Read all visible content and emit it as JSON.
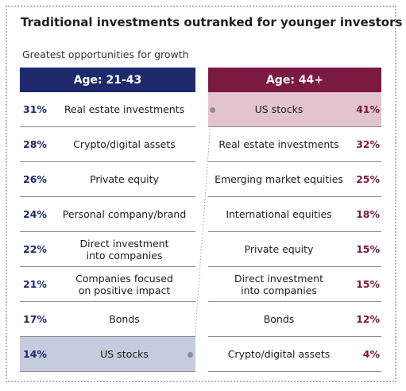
{
  "title": "Traditional investments outranked for younger investors",
  "subtitle": "Greatest opportunities for growth",
  "chart_data": {
    "type": "table",
    "title": "Traditional investments outranked for younger investors",
    "subtitle": "Greatest opportunities for growth",
    "accent_colors": {
      "left": "#1d2a6b",
      "right": "#7a1942",
      "left_highlight": "#c6ccdf",
      "right_highlight": "#e3c3cd"
    },
    "groups": [
      {
        "name": "Age: 21-43",
        "items": [
          {
            "value": "31%",
            "label": "Real estate investments"
          },
          {
            "value": "28%",
            "label": "Crypto/digital assets"
          },
          {
            "value": "26%",
            "label": "Private equity"
          },
          {
            "value": "24%",
            "label": "Personal company/brand"
          },
          {
            "value": "22%",
            "label": "Direct investment into companies"
          },
          {
            "value": "21%",
            "label": "Companies focused on positive impact"
          },
          {
            "value": "17%",
            "label": "Bonds"
          },
          {
            "value": "14%",
            "label": "US stocks"
          }
        ]
      },
      {
        "name": "Age: 44+",
        "items": [
          {
            "value": "41%",
            "label": "US stocks"
          },
          {
            "value": "32%",
            "label": "Real estate investments"
          },
          {
            "value": "25%",
            "label": "Emerging market equities"
          },
          {
            "value": "18%",
            "label": "International equities"
          },
          {
            "value": "15%",
            "label": "Private equity"
          },
          {
            "value": "15%",
            "label": "Direct investment into companies"
          },
          {
            "value": "12%",
            "label": "Bonds"
          },
          {
            "value": "4%",
            "label": "Crypto/digital assets"
          }
        ]
      }
    ],
    "connector": {
      "from": "US stocks (Age: 21-43)",
      "to": "US stocks (Age: 44+)"
    }
  }
}
